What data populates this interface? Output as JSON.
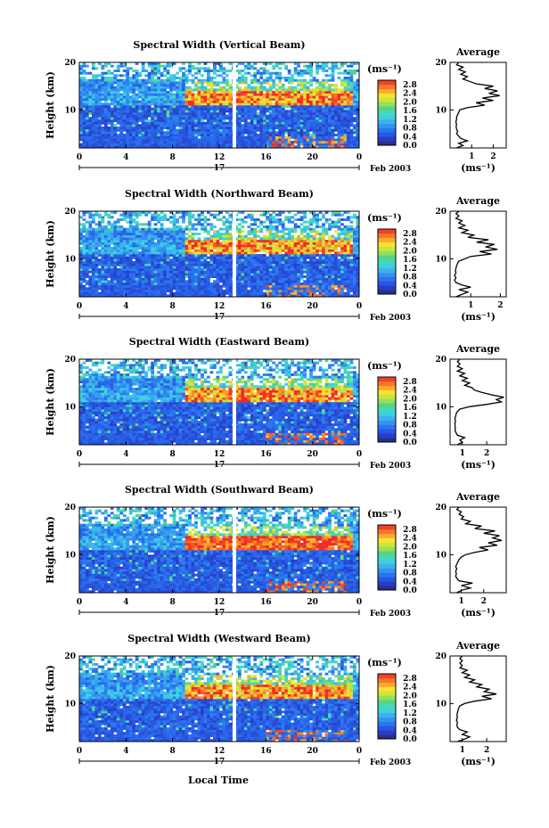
{
  "chart_data": {
    "type": "heatmap",
    "figure": {
      "x_axis_label": "Local Time",
      "y_axis_label": "Height (km)",
      "date_label": "Feb 2003",
      "day_label": "17",
      "average_title": "Average",
      "unit_label": "(ms⁻¹)",
      "x_range": [
        0,
        24
      ],
      "y_range": [
        2,
        20
      ],
      "x_ticks": [
        "0",
        "4",
        "8",
        "12",
        "16",
        "20",
        "0"
      ],
      "y_ticks": [
        "10",
        "20"
      ],
      "colorbar_ticks": [
        "2.8",
        "2.4",
        "2.0",
        "1.6",
        "1.2",
        "0.8",
        "0.4",
        "0.0"
      ],
      "colorbar_range": [
        0,
        3.0
      ],
      "data_gap_local_time": 13.3
    },
    "panels": [
      {
        "title": "Spectral Width (Vertical Beam)",
        "avg_ticks": [
          "1",
          "2"
        ],
        "avg_range": [
          0,
          2.6
        ],
        "avg_profile": [
          [
            2,
            0.3
          ],
          [
            2.5,
            0.6
          ],
          [
            3,
            0.4
          ],
          [
            3.5,
            0.8
          ],
          [
            4,
            0.5
          ],
          [
            4.5,
            0.4
          ],
          [
            5,
            0.3
          ],
          [
            5.5,
            0.35
          ],
          [
            6,
            0.3
          ],
          [
            6.5,
            0.28
          ],
          [
            7,
            0.3
          ],
          [
            7.5,
            0.27
          ],
          [
            8,
            0.3
          ],
          [
            8.5,
            0.3
          ],
          [
            9,
            0.35
          ],
          [
            9.5,
            0.4
          ],
          [
            10,
            0.45
          ],
          [
            10.5,
            0.8
          ],
          [
            11,
            1.6
          ],
          [
            11.5,
            1.2
          ],
          [
            12,
            2.0
          ],
          [
            12.5,
            1.5
          ],
          [
            13,
            2.3
          ],
          [
            13.5,
            1.8
          ],
          [
            14,
            2.2
          ],
          [
            14.5,
            1.6
          ],
          [
            15,
            2.0
          ],
          [
            15.5,
            1.2
          ],
          [
            16,
            0.9
          ],
          [
            16.5,
            0.6
          ],
          [
            17,
            0.8
          ],
          [
            17.5,
            0.5
          ],
          [
            18,
            0.7
          ],
          [
            18.5,
            0.4
          ],
          [
            19,
            0.6
          ],
          [
            19.5,
            0.3
          ],
          [
            20,
            0.4
          ]
        ]
      },
      {
        "title": "Spectral Width (Northward Beam)",
        "avg_ticks": [
          "1",
          "2"
        ],
        "avg_range": [
          0.3,
          2.2
        ],
        "avg_profile": [
          [
            2,
            0.5
          ],
          [
            2.5,
            0.7
          ],
          [
            3,
            0.9
          ],
          [
            3.5,
            0.6
          ],
          [
            4,
            1.0
          ],
          [
            4.5,
            0.7
          ],
          [
            5,
            0.5
          ],
          [
            5.5,
            0.45
          ],
          [
            6,
            0.5
          ],
          [
            6.5,
            0.45
          ],
          [
            7,
            0.5
          ],
          [
            7.5,
            0.48
          ],
          [
            8,
            0.5
          ],
          [
            8.5,
            0.52
          ],
          [
            9,
            0.55
          ],
          [
            9.5,
            0.6
          ],
          [
            10,
            0.8
          ],
          [
            10.5,
            1.0
          ],
          [
            11,
            1.7
          ],
          [
            11.5,
            1.3
          ],
          [
            12,
            1.9
          ],
          [
            12.5,
            1.5
          ],
          [
            13,
            1.8
          ],
          [
            13.5,
            1.2
          ],
          [
            14,
            1.6
          ],
          [
            14.5,
            0.9
          ],
          [
            15,
            1.1
          ],
          [
            15.5,
            0.7
          ],
          [
            16,
            0.9
          ],
          [
            16.5,
            0.6
          ],
          [
            17,
            0.8
          ],
          [
            17.5,
            0.6
          ],
          [
            18,
            0.7
          ],
          [
            18.5,
            0.5
          ],
          [
            19,
            0.6
          ],
          [
            19.5,
            0.5
          ],
          [
            20,
            0.6
          ]
        ]
      },
      {
        "title": "Spectral Width (Eastward Beam)",
        "avg_ticks": [
          "1",
          "2"
        ],
        "avg_range": [
          0.5,
          2.8
        ],
        "avg_profile": [
          [
            2,
            0.8
          ],
          [
            2.5,
            1.0
          ],
          [
            3,
            0.9
          ],
          [
            3.5,
            1.1
          ],
          [
            4,
            0.8
          ],
          [
            4.5,
            0.75
          ],
          [
            5,
            0.7
          ],
          [
            5.5,
            0.72
          ],
          [
            6,
            0.7
          ],
          [
            6.5,
            0.7
          ],
          [
            7,
            0.72
          ],
          [
            7.5,
            0.7
          ],
          [
            8,
            0.73
          ],
          [
            8.5,
            0.75
          ],
          [
            9,
            0.8
          ],
          [
            9.5,
            0.9
          ],
          [
            10,
            1.3
          ],
          [
            10.5,
            2.0
          ],
          [
            11,
            2.6
          ],
          [
            11.5,
            2.4
          ],
          [
            12,
            2.7
          ],
          [
            12.5,
            2.2
          ],
          [
            13,
            1.8
          ],
          [
            13.5,
            1.5
          ],
          [
            14,
            1.4
          ],
          [
            14.5,
            1.1
          ],
          [
            15,
            1.3
          ],
          [
            15.5,
            1.0
          ],
          [
            16,
            1.2
          ],
          [
            16.5,
            0.9
          ],
          [
            17,
            1.1
          ],
          [
            17.5,
            0.8
          ],
          [
            18,
            1.0
          ],
          [
            18.5,
            0.8
          ],
          [
            19,
            0.9
          ],
          [
            19.5,
            0.8
          ],
          [
            20,
            0.9
          ]
        ]
      },
      {
        "title": "Spectral Width (Southward Beam)",
        "avg_ticks": [
          "1",
          "2"
        ],
        "avg_range": [
          0.5,
          3.0
        ],
        "avg_profile": [
          [
            2,
            0.8
          ],
          [
            2.5,
            1.0
          ],
          [
            3,
            1.4
          ],
          [
            3.5,
            1.0
          ],
          [
            4,
            1.5
          ],
          [
            4.5,
            0.9
          ],
          [
            5,
            0.8
          ],
          [
            5.5,
            0.75
          ],
          [
            6,
            0.78
          ],
          [
            6.5,
            0.75
          ],
          [
            7,
            0.8
          ],
          [
            7.5,
            0.75
          ],
          [
            8,
            0.8
          ],
          [
            8.5,
            0.85
          ],
          [
            9,
            0.9
          ],
          [
            9.5,
            1.0
          ],
          [
            10,
            1.2
          ],
          [
            10.5,
            1.6
          ],
          [
            11,
            2.2
          ],
          [
            11.5,
            1.8
          ],
          [
            12,
            2.6
          ],
          [
            12.5,
            2.2
          ],
          [
            13,
            2.8
          ],
          [
            13.5,
            2.4
          ],
          [
            14,
            2.7
          ],
          [
            14.5,
            2.0
          ],
          [
            15,
            2.5
          ],
          [
            15.5,
            1.6
          ],
          [
            16,
            1.9
          ],
          [
            16.5,
            1.2
          ],
          [
            17,
            1.4
          ],
          [
            17.5,
            1.0
          ],
          [
            18,
            1.1
          ],
          [
            18.5,
            0.9
          ],
          [
            19,
            1.0
          ],
          [
            19.5,
            0.8
          ],
          [
            20,
            0.9
          ]
        ]
      },
      {
        "title": "Spectral Width (Westward Beam)",
        "avg_ticks": [
          "1",
          "2"
        ],
        "avg_range": [
          0.5,
          2.8
        ],
        "avg_profile": [
          [
            2,
            0.8
          ],
          [
            2.5,
            1.1
          ],
          [
            3,
            1.3
          ],
          [
            3.5,
            1.0
          ],
          [
            4,
            1.2
          ],
          [
            4.5,
            0.9
          ],
          [
            5,
            0.8
          ],
          [
            5.5,
            0.78
          ],
          [
            6,
            0.8
          ],
          [
            6.5,
            0.76
          ],
          [
            7,
            0.8
          ],
          [
            7.5,
            0.78
          ],
          [
            8,
            0.8
          ],
          [
            8.5,
            0.82
          ],
          [
            9,
            0.85
          ],
          [
            9.5,
            0.9
          ],
          [
            10,
            1.1
          ],
          [
            10.5,
            1.5
          ],
          [
            11,
            2.2
          ],
          [
            11.5,
            1.8
          ],
          [
            12,
            2.4
          ],
          [
            12.5,
            1.9
          ],
          [
            13,
            2.1
          ],
          [
            13.5,
            1.6
          ],
          [
            14,
            1.8
          ],
          [
            14.5,
            1.3
          ],
          [
            15,
            1.5
          ],
          [
            15.5,
            1.1
          ],
          [
            16,
            1.3
          ],
          [
            16.5,
            1.0
          ],
          [
            17,
            1.2
          ],
          [
            17.5,
            0.9
          ],
          [
            18,
            1.0
          ],
          [
            18.5,
            0.9
          ],
          [
            19,
            1.0
          ],
          [
            19.5,
            0.9
          ],
          [
            20,
            1.0
          ]
        ]
      }
    ]
  }
}
